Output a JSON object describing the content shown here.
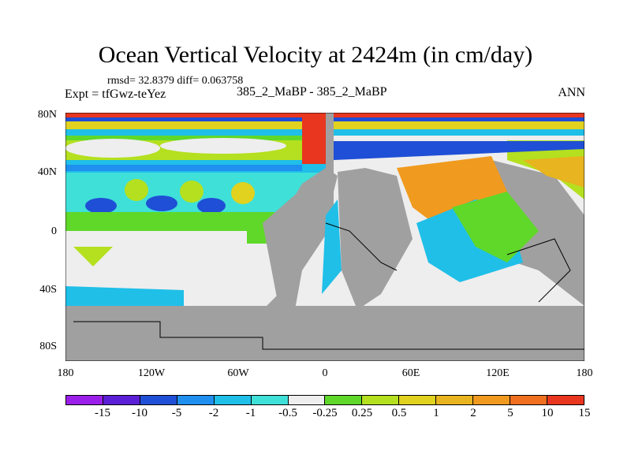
{
  "title": "Ocean Vertical Velocity at 2424m (in cm/day)",
  "stats": "rmsd= 32.8379 diff= 0.063758",
  "expt": "Expt = tfGwz-teYez",
  "subtitle": "385_2_MaBP - 385_2_MaBP",
  "season": "ANN",
  "lat_labels": [
    "80N",
    "40N",
    "0",
    "40S",
    "80S"
  ],
  "lon_labels": [
    "180",
    "120W",
    "60W",
    "0",
    "60E",
    "120E",
    "180"
  ],
  "colorbar": {
    "colors": [
      "#9b1fe8",
      "#5a1fd6",
      "#1f4fd6",
      "#1f8ff0",
      "#1fbfe8",
      "#3fe0d8",
      "#eeeeee",
      "#5fd82a",
      "#b4e01f",
      "#e0d21f",
      "#e8b41f",
      "#f09a1f",
      "#f0701f",
      "#e8361f"
    ],
    "labels": [
      "-15",
      "-10",
      "-5",
      "-2",
      "-1",
      "-0.5",
      "-0.25",
      "0.25",
      "0.5",
      "1",
      "2",
      "5",
      "10",
      "15"
    ]
  },
  "land_color": "#a0a0a0"
}
